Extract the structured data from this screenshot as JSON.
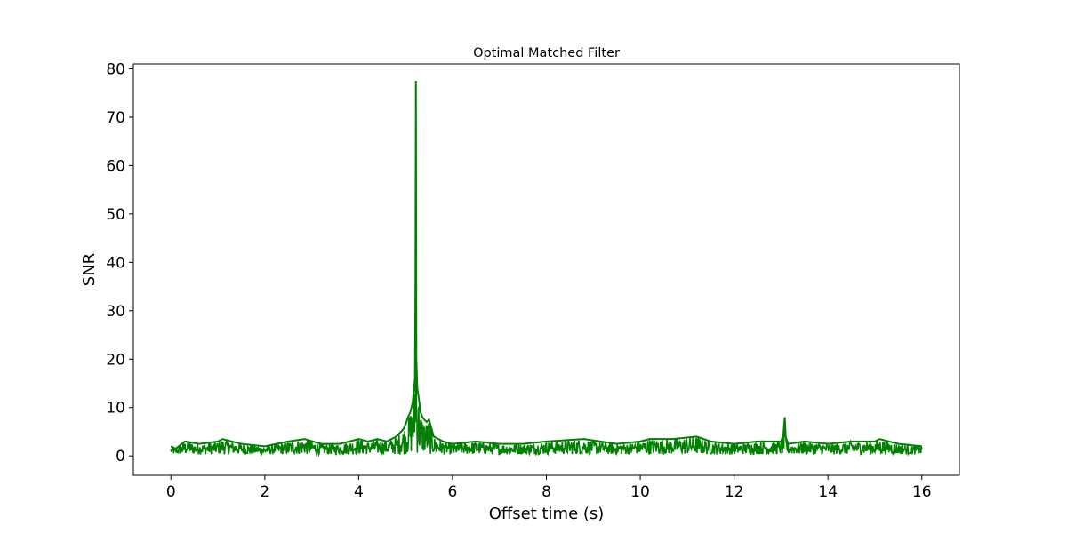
{
  "chart_data": {
    "type": "line",
    "title": "Optimal Matched Filter",
    "xlabel": "Offset time (s)",
    "ylabel": "SNR",
    "xlim": [
      -0.8,
      16.8
    ],
    "ylim": [
      -4,
      81
    ],
    "xticks": [
      0,
      2,
      4,
      6,
      8,
      10,
      12,
      14,
      16
    ],
    "yticks": [
      0,
      10,
      20,
      30,
      40,
      50,
      60,
      70,
      80
    ],
    "grid": false,
    "legend": "none",
    "series": [
      {
        "color": "#008000",
        "baseline_range": [
          0.3,
          3.2
        ],
        "x": [
          0,
          0.1,
          0.3,
          0.6,
          1.0,
          1.1,
          1.5,
          2.0,
          2.5,
          2.85,
          3.2,
          3.6,
          4.0,
          4.2,
          4.4,
          4.6,
          4.8,
          4.95,
          5.0,
          5.05,
          5.1,
          5.15,
          5.2,
          5.21,
          5.22,
          5.23,
          5.25,
          5.28,
          5.32,
          5.36,
          5.4,
          5.45,
          5.5,
          5.6,
          5.8,
          6.0,
          6.5,
          7.0,
          7.5,
          8.0,
          8.8,
          9.5,
          10.0,
          10.2,
          10.7,
          11.2,
          11.5,
          12.0,
          12.5,
          13.0,
          13.05,
          13.08,
          13.1,
          13.15,
          13.5,
          14.0,
          14.5,
          15.0,
          15.1,
          15.5,
          16.0
        ],
        "y": [
          2.0,
          1.5,
          3.0,
          2.5,
          3.0,
          3.5,
          2.5,
          2.0,
          3.0,
          3.5,
          2.5,
          2.5,
          3.5,
          3.0,
          3.5,
          3.0,
          4.0,
          5.5,
          6.5,
          8.0,
          9.0,
          11.0,
          16.0,
          36.0,
          77.5,
          20.0,
          14.0,
          12.0,
          9.0,
          8.0,
          7.5,
          7.0,
          7.5,
          4.0,
          3.0,
          2.5,
          3.0,
          2.5,
          2.5,
          3.0,
          3.5,
          2.5,
          3.0,
          3.5,
          3.5,
          4.0,
          3.0,
          2.5,
          3.0,
          3.0,
          4.5,
          8.0,
          4.0,
          2.5,
          3.0,
          2.5,
          3.0,
          3.0,
          3.5,
          2.5,
          2.0
        ]
      }
    ]
  }
}
